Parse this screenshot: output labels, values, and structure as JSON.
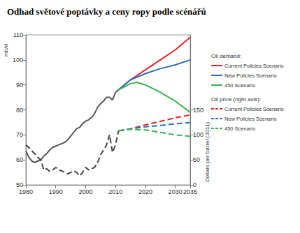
{
  "chart_data": {
    "type": "line",
    "title": "Odhad světové poptávky a ceny ropy podle scénářů",
    "y_label": "mb/d",
    "y2_label": "Dollars per barrel (2011)",
    "annotations": [
      "Oil demand:",
      "Oil price (right axis):"
    ],
    "legend": "right",
    "grid": false,
    "xlim": [
      1980,
      2035
    ],
    "xticks": [
      1980,
      1990,
      2000,
      2010,
      2020,
      2030,
      2035
    ],
    "ylim": [
      50,
      110
    ],
    "yticks": [
      50,
      60,
      70,
      80,
      90,
      100,
      110
    ],
    "y2lim": [
      0,
      300
    ],
    "y2ticks": [
      0,
      50,
      100,
      150
    ],
    "series": [
      {
        "color": "#555555",
        "line_style": "solid",
        "axis": "y",
        "x": [
          1980,
          1981,
          1982,
          1983,
          1984,
          1985,
          1986,
          1987,
          1988,
          1989,
          1990,
          1991,
          1992,
          1993,
          1994,
          1995,
          1996,
          1997,
          1998,
          1999,
          2000,
          2001,
          2002,
          2003,
          2004,
          2005,
          2006,
          2007,
          2008,
          2009,
          2010,
          2011
        ],
        "values": [
          63.5,
          61,
          59.5,
          59,
          59.5,
          60,
          61.5,
          62.5,
          64,
          65,
          65.5,
          66,
          66.5,
          67,
          68,
          69.5,
          71,
          72.5,
          73,
          74.5,
          75.5,
          76,
          77,
          78.5,
          81,
          82.5,
          83.5,
          85,
          85,
          84,
          87,
          88
        ]
      },
      {
        "name": "Current Policies Scenario",
        "color": "#e0262a",
        "line_style": "solid",
        "axis": "y",
        "x": [
          2011,
          2015,
          2020,
          2025,
          2030,
          2035
        ],
        "values": [
          88,
          92,
          96,
          100,
          104,
          109
        ]
      },
      {
        "name": "New Policies Scenario",
        "color": "#2e6fbf",
        "line_style": "solid",
        "axis": "y",
        "x": [
          2011,
          2015,
          2020,
          2025,
          2030,
          2035
        ],
        "values": [
          88,
          92,
          94.5,
          96.5,
          98,
          100
        ]
      },
      {
        "name": "450 Scenario",
        "color": "#39b54a",
        "line_style": "solid",
        "axis": "y",
        "x": [
          2011,
          2015,
          2017,
          2020,
          2025,
          2030,
          2035
        ],
        "values": [
          88,
          90.5,
          91,
          90,
          87,
          83.5,
          79
        ]
      },
      {
        "color": "#444444",
        "line_style": "dashed",
        "axis": "y2",
        "x": [
          1980,
          1981,
          1982,
          1983,
          1984,
          1985,
          1986,
          1987,
          1988,
          1989,
          1990,
          1991,
          1992,
          1993,
          1994,
          1995,
          1996,
          1997,
          1998,
          1999,
          2000,
          2001,
          2002,
          2003,
          2004,
          2005,
          2006,
          2007,
          2008,
          2009,
          2010,
          2011
        ],
        "values": [
          80,
          75,
          68,
          62,
          55,
          50,
          30,
          32,
          27,
          30,
          35,
          30,
          28,
          25,
          22,
          25,
          28,
          25,
          18,
          25,
          35,
          30,
          32,
          35,
          45,
          60,
          70,
          80,
          100,
          65,
          80,
          108
        ]
      },
      {
        "name": "Current Policies Scenario",
        "color": "#e0262a",
        "line_style": "dashed",
        "axis": "y2",
        "x": [
          2011,
          2015,
          2020,
          2025,
          2030,
          2035
        ],
        "values": [
          108,
          112,
          120,
          127,
          134,
          140
        ]
      },
      {
        "name": "New Policies Scenario",
        "color": "#2e6fbf",
        "line_style": "dashed",
        "axis": "y2",
        "x": [
          2011,
          2015,
          2020,
          2025,
          2030,
          2035
        ],
        "values": [
          108,
          112,
          116,
          119,
          122,
          125
        ]
      },
      {
        "name": "450 Scenario",
        "color": "#39b54a",
        "line_style": "dashed",
        "axis": "y2",
        "x": [
          2011,
          2015,
          2020,
          2025,
          2030,
          2035
        ],
        "values": [
          108,
          111,
          110,
          105,
          100,
          97
        ]
      }
    ]
  }
}
